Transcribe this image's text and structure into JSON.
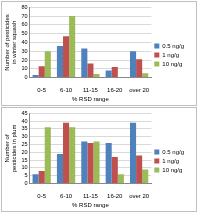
{
  "chart_data": [
    {
      "type": "bar",
      "categories": [
        "0-5",
        "6-10",
        "11-15",
        "16-20",
        "over 20"
      ],
      "series": [
        {
          "name": "0.5 ng/g",
          "color": "#4f81bd",
          "values": [
            3,
            36,
            33,
            8,
            30
          ]
        },
        {
          "name": "1 ng/g",
          "color": "#c0504d",
          "values": [
            13,
            47,
            16,
            12,
            21
          ]
        },
        {
          "name": "10 ng/g",
          "color": "#9bbb59",
          "values": [
            30,
            70,
            4,
            0,
            5
          ]
        }
      ],
      "x_label": "% RSD range",
      "y_label": "Number of pesticides in winter squash",
      "ylim": [
        0,
        80
      ],
      "yticks": [
        0,
        10,
        20,
        30,
        40,
        50,
        60,
        70,
        80
      ],
      "grid": true,
      "legend": "right"
    },
    {
      "type": "bar",
      "categories": [
        "0-5",
        "6-10",
        "11-15",
        "16-20",
        "over 20"
      ],
      "series": [
        {
          "name": "0.5 ng/g",
          "color": "#4f81bd",
          "values": [
            6,
            19,
            27,
            26,
            39
          ]
        },
        {
          "name": "1 ng/g",
          "color": "#c0504d",
          "values": [
            8,
            39,
            26,
            17,
            18
          ]
        },
        {
          "name": "10 ng/g",
          "color": "#9bbb59",
          "values": [
            36,
            36,
            27,
            6,
            9
          ]
        }
      ],
      "x_label": "% RSD range",
      "y_label": "Number of pesticides in plum",
      "ylim": [
        0,
        45
      ],
      "yticks": [
        0,
        5,
        10,
        15,
        20,
        25,
        30,
        35,
        40,
        45
      ],
      "grid": true,
      "legend": "right"
    }
  ]
}
